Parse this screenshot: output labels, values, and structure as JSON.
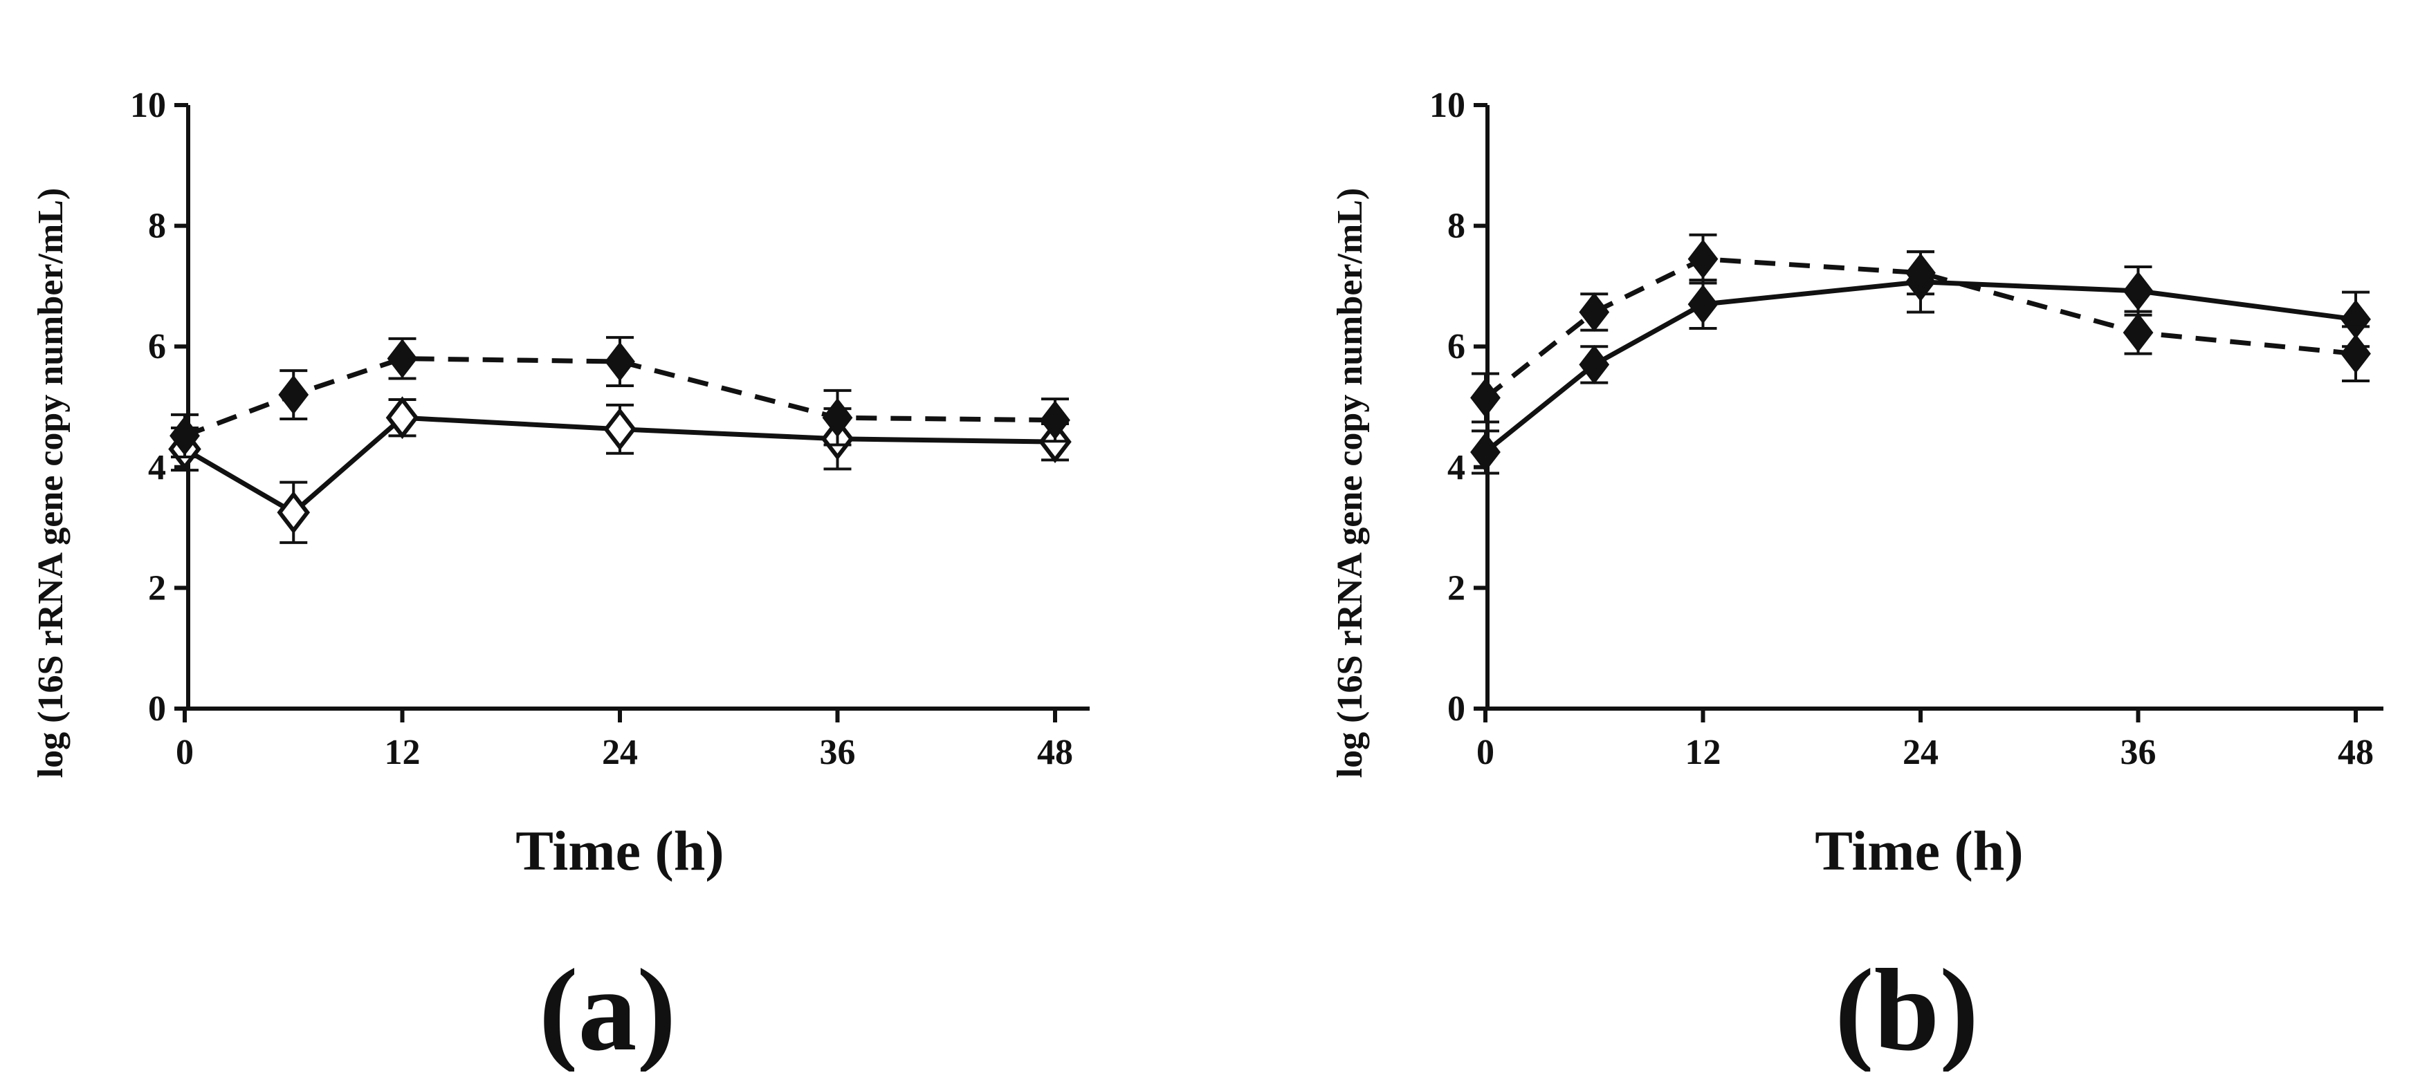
{
  "chart_data": [
    {
      "type": "line",
      "panel_label": "(a)",
      "xlabel": "Time (h)",
      "ylabel": "log (16S rRNA gene copy number/mL)",
      "xlim": [
        0,
        48
      ],
      "ylim": [
        0,
        10
      ],
      "x_ticks": [
        0,
        12,
        24,
        36,
        48
      ],
      "y_ticks": [
        0,
        2,
        4,
        6,
        8,
        10
      ],
      "grid": false,
      "series": [
        {
          "name": "solid",
          "line_style": "solid",
          "marker": "open-diamond",
          "x": [
            0,
            6,
            12,
            24,
            36,
            48
          ],
          "values": [
            4.3,
            3.25,
            4.82,
            4.63,
            4.47,
            4.42
          ],
          "errors": [
            0.35,
            0.5,
            0.3,
            0.4,
            0.5,
            0.3
          ]
        },
        {
          "name": "dashed",
          "line_style": "dashed",
          "marker": "filled-diamond",
          "x": [
            0,
            6,
            12,
            24,
            36,
            48
          ],
          "values": [
            4.52,
            5.2,
            5.8,
            5.75,
            4.82,
            4.78
          ],
          "errors": [
            0.35,
            0.4,
            0.33,
            0.4,
            0.45,
            0.35
          ]
        }
      ]
    },
    {
      "type": "line",
      "panel_label": "(b)",
      "xlabel": "Time (h)",
      "ylabel": "log (16S rRNA gene copy number/mL)",
      "xlim": [
        0,
        48
      ],
      "ylim": [
        0,
        10
      ],
      "x_ticks": [
        0,
        12,
        24,
        36,
        48
      ],
      "y_ticks": [
        0,
        2,
        4,
        6,
        8,
        10
      ],
      "grid": false,
      "series": [
        {
          "name": "solid",
          "line_style": "solid",
          "marker": "filled-diamond",
          "x": [
            0,
            6,
            12,
            24,
            36,
            48
          ],
          "values": [
            4.25,
            5.7,
            6.7,
            7.07,
            6.92,
            6.45
          ],
          "errors": [
            0.35,
            0.3,
            0.4,
            0.5,
            0.4,
            0.45
          ]
        },
        {
          "name": "dashed",
          "line_style": "dashed",
          "marker": "filled-diamond",
          "x": [
            0,
            6,
            12,
            24,
            36,
            48
          ],
          "values": [
            5.15,
            6.57,
            7.45,
            7.22,
            6.23,
            5.88
          ],
          "errors": [
            0.4,
            0.3,
            0.4,
            0.35,
            0.35,
            0.45
          ]
        }
      ]
    }
  ]
}
